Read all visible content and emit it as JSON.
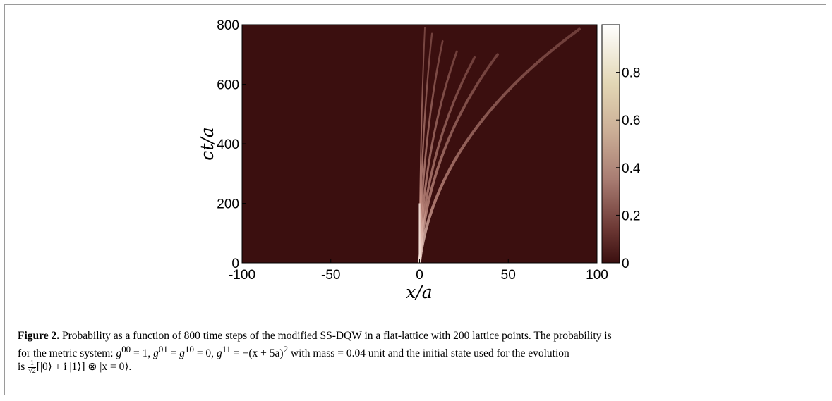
{
  "chart_data": {
    "type": "heatmap",
    "title": "",
    "xlabel": "x/a",
    "ylabel": "ct/a",
    "xlim": [
      -100,
      100
    ],
    "ylim": [
      0,
      800
    ],
    "x_ticks": [
      "-100",
      "-50",
      "0",
      "50",
      "100"
    ],
    "y_ticks": [
      "0",
      "200",
      "400",
      "600",
      "800"
    ],
    "colorbar": {
      "range": [
        0,
        1
      ],
      "ticks": [
        "0",
        "0.2",
        "0.4",
        "0.6",
        "0.8"
      ],
      "colormap": "pink",
      "low_color": "#3b0f0f",
      "high_color": "#ffffff"
    },
    "background_value": 0,
    "ridges": [
      {
        "x_end": 0,
        "t_end": 800,
        "intensity": 0.42
      },
      {
        "x_end": 3,
        "t_end": 790,
        "intensity": 0.4
      },
      {
        "x_end": 7,
        "t_end": 770,
        "intensity": 0.38
      },
      {
        "x_end": 13,
        "t_end": 745,
        "intensity": 0.36
      },
      {
        "x_end": 21,
        "t_end": 710,
        "intensity": 0.34
      },
      {
        "x_end": 31,
        "t_end": 690,
        "intensity": 0.32
      },
      {
        "x_end": 44,
        "t_end": 700,
        "intensity": 0.32
      },
      {
        "x_end": 90,
        "t_end": 785,
        "intensity": 0.3
      }
    ]
  },
  "caption": {
    "label": "Figure 2.",
    "line1": " Probability as a function of 800 time steps of the modified SS-DQW in a flat-lattice with 200 lattice points. The probability is",
    "line2_pre": "for the metric system: ",
    "g00": "g",
    "g00_sup": "00",
    "eq1": " = 1, ",
    "g01_sup": "01",
    "g10_sup": "10",
    "eq2": " = 0, ",
    "g11_sup": "11",
    "eq3": " = −(x + 5a)",
    "sq": "2",
    "line2_post": " with mass = 0.04 unit and the initial state used for the evolution",
    "line3_pre": "is ",
    "frac_num": "1",
    "frac_den": "√2",
    "line3_post": "[|0⟩ + i |1⟩] ⊗ |x = 0⟩."
  }
}
